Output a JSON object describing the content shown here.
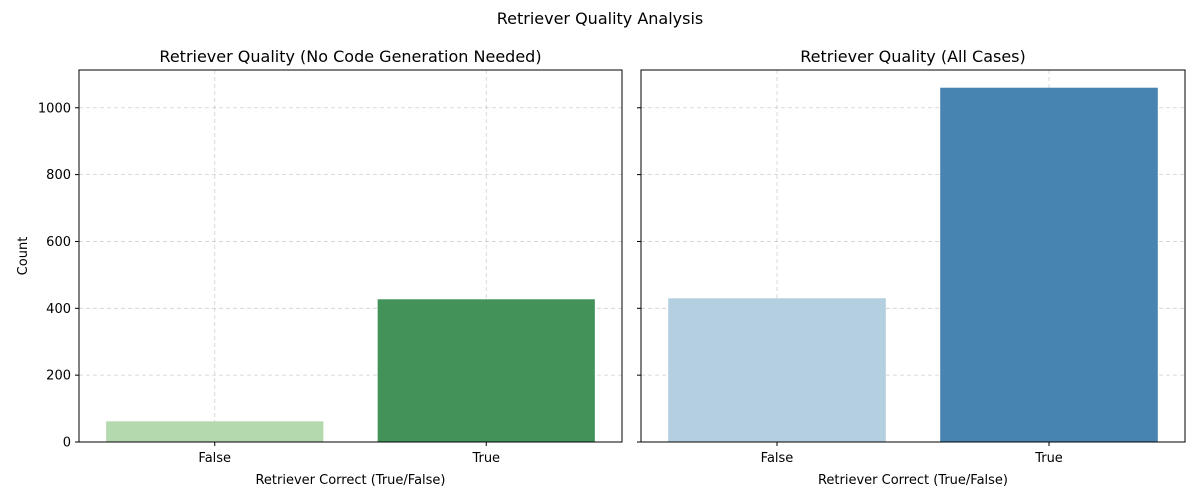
{
  "figure": {
    "suptitle": "Retriever Quality Analysis"
  },
  "chart_data": [
    {
      "type": "bar",
      "title": "Retriever Quality (No Code Generation Needed)",
      "xlabel": "Retriever Correct (True/False)",
      "ylabel": "Count",
      "categories": [
        "False",
        "True"
      ],
      "values": [
        62,
        427
      ],
      "colors": [
        "#b5d9ae",
        "#43925a"
      ],
      "ylim": [
        0,
        1113
      ],
      "yticks": [
        0,
        200,
        400,
        600,
        800,
        1000
      ],
      "grid": true
    },
    {
      "type": "bar",
      "title": "Retriever Quality (All Cases)",
      "xlabel": "Retriever Correct (True/False)",
      "ylabel": "",
      "categories": [
        "False",
        "True"
      ],
      "values": [
        430,
        1060
      ],
      "colors": [
        "#b3cfe0",
        "#4884b2"
      ],
      "ylim": [
        0,
        1113
      ],
      "yticks": [
        0,
        200,
        400,
        600,
        800,
        1000
      ],
      "grid": true,
      "sharey": true
    }
  ]
}
